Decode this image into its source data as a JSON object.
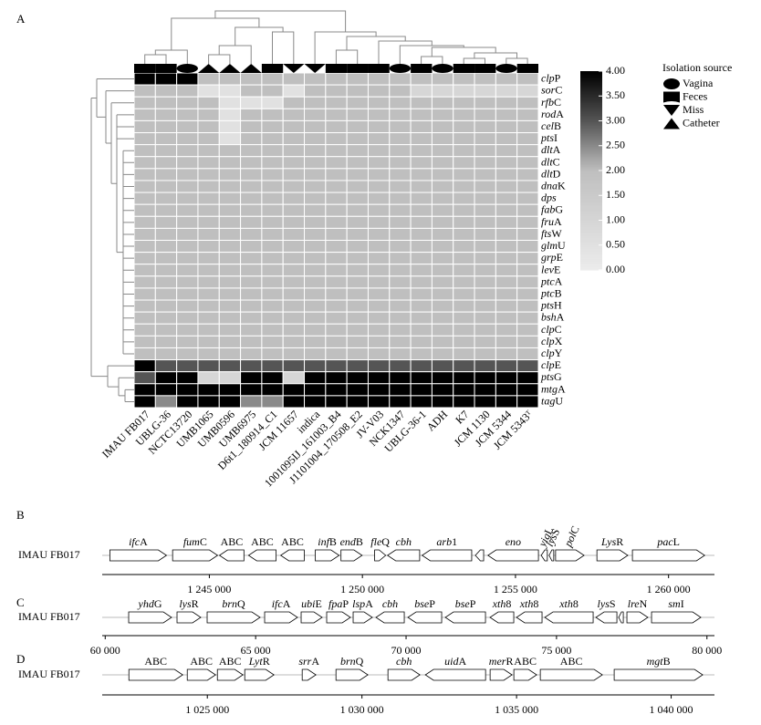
{
  "panel_labels": [
    "A",
    "B",
    "C",
    "D"
  ],
  "heatmap": {
    "columns": [
      "IMAU FB017",
      "UBLG-36",
      "NCTC13720",
      "UMB1065",
      "UMB0596",
      "UMB6975",
      "D6t1_180914_C1",
      "JCM 11657",
      "indica",
      "1001095IJ_161003_B4",
      "J1101004_170508_E2",
      "JV-V03",
      "NCK1347",
      "UBLG-36-1",
      "ADH",
      "K7",
      "JCM 1130",
      "JCM 5344",
      "JCM 5343ᵀ"
    ],
    "rows": [
      "clpP",
      "sorC",
      "rfbC",
      "rodA",
      "celB",
      "ptsI",
      "dltA",
      "dltC",
      "dltD",
      "dnaK",
      "dps",
      "fabG",
      "fruA",
      "ftsW",
      "glmU",
      "grpE",
      "levE",
      "ptcA",
      "ptcB",
      "ptsH",
      "bshA",
      "clpC",
      "clpX",
      "clpY",
      "clpE",
      "ptsG",
      "mtgA",
      "tagU"
    ],
    "values": [
      [
        4,
        4,
        4,
        2,
        2,
        2,
        2,
        2,
        2,
        2,
        2,
        2,
        2,
        2,
        2,
        2,
        2,
        2,
        2
      ],
      [
        2,
        2,
        2,
        0.5,
        0.5,
        2,
        2,
        0.5,
        2,
        2,
        2,
        2,
        2,
        1,
        1,
        1,
        1,
        1,
        1
      ],
      [
        2,
        2,
        2,
        2,
        0.5,
        0.5,
        0.5,
        2,
        2,
        2,
        2,
        2,
        2,
        2,
        2,
        2,
        2,
        2,
        2
      ],
      [
        2,
        2,
        2,
        2,
        0.5,
        2,
        2,
        2,
        2,
        2,
        2,
        2,
        2,
        2,
        2,
        2,
        2,
        2,
        2
      ],
      [
        2,
        2,
        2,
        2,
        0.5,
        2,
        2,
        2,
        2,
        2,
        2,
        2,
        2,
        2,
        2,
        2,
        2,
        2,
        2
      ],
      [
        2,
        2,
        2,
        2,
        0.5,
        2,
        2,
        2,
        2,
        2,
        2,
        2,
        2,
        2,
        2,
        2,
        2,
        2,
        2
      ],
      [
        2,
        2,
        2,
        2,
        2,
        2,
        2,
        2,
        2,
        2,
        2,
        2,
        2,
        2,
        2,
        2,
        2,
        2,
        2
      ],
      [
        2,
        2,
        2,
        2,
        2,
        2,
        2,
        2,
        2,
        2,
        2,
        2,
        2,
        2,
        2,
        2,
        2,
        2,
        2
      ],
      [
        2,
        2,
        2,
        2,
        2,
        2,
        2,
        2,
        2,
        2,
        2,
        2,
        2,
        2,
        2,
        2,
        2,
        2,
        2
      ],
      [
        2,
        2,
        2,
        2,
        2,
        2,
        2,
        2,
        2,
        2,
        2,
        2,
        2,
        2,
        2,
        2,
        2,
        2,
        2
      ],
      [
        2,
        2,
        2,
        2,
        2,
        2,
        2,
        2,
        2,
        2,
        2,
        2,
        2,
        2,
        2,
        2,
        2,
        2,
        2
      ],
      [
        2,
        2,
        2,
        2,
        2,
        2,
        2,
        2,
        2,
        2,
        2,
        2,
        2,
        2,
        2,
        2,
        2,
        2,
        2
      ],
      [
        2,
        2,
        2,
        2,
        2,
        2,
        2,
        2,
        2,
        2,
        2,
        2,
        2,
        2,
        2,
        2,
        2,
        2,
        2
      ],
      [
        2,
        2,
        2,
        2,
        2,
        2,
        2,
        2,
        2,
        2,
        2,
        2,
        2,
        2,
        2,
        2,
        2,
        2,
        2
      ],
      [
        2,
        2,
        2,
        2,
        2,
        2,
        2,
        2,
        2,
        2,
        2,
        2,
        2,
        2,
        2,
        2,
        2,
        2,
        2
      ],
      [
        2,
        2,
        2,
        2,
        2,
        2,
        2,
        2,
        2,
        2,
        2,
        2,
        2,
        2,
        2,
        2,
        2,
        2,
        2
      ],
      [
        2,
        2,
        2,
        2,
        2,
        2,
        2,
        2,
        2,
        2,
        2,
        2,
        2,
        2,
        2,
        2,
        2,
        2,
        2
      ],
      [
        2,
        2,
        2,
        2,
        2,
        2,
        2,
        2,
        2,
        2,
        2,
        2,
        2,
        2,
        2,
        2,
        2,
        2,
        2
      ],
      [
        2,
        2,
        2,
        2,
        2,
        2,
        2,
        2,
        2,
        2,
        2,
        2,
        2,
        2,
        2,
        2,
        2,
        2,
        2
      ],
      [
        2,
        2,
        2,
        2,
        2,
        2,
        2,
        2,
        2,
        2,
        2,
        2,
        2,
        2,
        2,
        2,
        2,
        2,
        2
      ],
      [
        2,
        2,
        2,
        2,
        2,
        2,
        2,
        2,
        2,
        2,
        2,
        2,
        2,
        2,
        2,
        2,
        2,
        2,
        2
      ],
      [
        2,
        2,
        2,
        2,
        2,
        2,
        2,
        2,
        2,
        2,
        2,
        2,
        2,
        2,
        2,
        2,
        2,
        2,
        2
      ],
      [
        2,
        2,
        2,
        2,
        2,
        2,
        2,
        2,
        2,
        2,
        2,
        2,
        2,
        2,
        2,
        2,
        2,
        2,
        2
      ],
      [
        2,
        2,
        2,
        2,
        2,
        2,
        2,
        2,
        2,
        2,
        2,
        2,
        2,
        2,
        2,
        2,
        2,
        2,
        2
      ],
      [
        4,
        3,
        3,
        3,
        3,
        3,
        3,
        3,
        3,
        3,
        3,
        3,
        3,
        3,
        3,
        3,
        3,
        3,
        3
      ],
      [
        3,
        4,
        4,
        1,
        1,
        4,
        4,
        1,
        4,
        4,
        4,
        4,
        4,
        4,
        4,
        4,
        4,
        4,
        4
      ],
      [
        4,
        4,
        4,
        4,
        4,
        4,
        4,
        4,
        4,
        4,
        4,
        4,
        4,
        4,
        4,
        4,
        4,
        4,
        4
      ],
      [
        4,
        2.5,
        4,
        4,
        4,
        2.5,
        2.5,
        4,
        4,
        4,
        4,
        4,
        4,
        4,
        4,
        4,
        4,
        4,
        4
      ]
    ],
    "sources": [
      "Feces",
      "Feces",
      "Vagina",
      "Catheter",
      "Catheter",
      "Catheter",
      "Feces",
      "Miss",
      "Miss",
      "Feces",
      "Feces",
      "Feces",
      "Vagina",
      "Feces",
      "Vagina",
      "Feces",
      "Feces",
      "Vagina",
      "Feces"
    ],
    "source_legend": {
      "title": "Isolation source",
      "items": [
        "Vagina",
        "Feces",
        "Miss",
        "Catheter"
      ]
    },
    "colorbar": {
      "lim": [
        0,
        4
      ],
      "ticks": [
        {
          "value": 0,
          "label": "0.00"
        },
        {
          "value": 0.5,
          "label": "0.50"
        },
        {
          "value": 1,
          "label": "1.00"
        },
        {
          "value": 1.5,
          "label": "1.50"
        },
        {
          "value": 2,
          "label": "2.00"
        },
        {
          "value": 2.5,
          "label": "2.50"
        },
        {
          "value": 3,
          "label": "3.00"
        },
        {
          "value": 3.5,
          "label": "3.50"
        },
        {
          "value": 4,
          "label": "4.00"
        }
      ],
      "stops": [
        [
          0,
          "#ececec"
        ],
        [
          2,
          "#bfbfbf"
        ],
        [
          3,
          "#555555"
        ],
        [
          4,
          "#000000"
        ]
      ]
    }
  },
  "tracks": [
    {
      "label": "IMAU FB017",
      "xlim": [
        1241500,
        1261500
      ],
      "xticks": [
        {
          "value": 1245000,
          "label": "1 245 000"
        },
        {
          "value": 1250000,
          "label": "1 250 000"
        },
        {
          "value": 1255000,
          "label": "1 255 000"
        },
        {
          "value": 1260000,
          "label": "1 260 000"
        }
      ],
      "genes": [
        {
          "label": "ifcA",
          "start": 1241750,
          "end": 1243600,
          "strand": 1
        },
        {
          "label": "fumC",
          "start": 1243800,
          "end": 1245270,
          "strand": 1
        },
        {
          "label": "ABC",
          "start": 1245330,
          "end": 1246130,
          "strand": -1
        },
        {
          "label": "ABC",
          "start": 1246280,
          "end": 1247180,
          "strand": -1
        },
        {
          "label": "ABC",
          "start": 1247330,
          "end": 1248100,
          "strand": -1
        },
        {
          "label": "infB",
          "start": 1248460,
          "end": 1249240,
          "strand": 1
        },
        {
          "label": "endB",
          "start": 1249300,
          "end": 1249990,
          "strand": 1
        },
        {
          "label": "fleQ",
          "start": 1250400,
          "end": 1250760,
          "strand": 1
        },
        {
          "label": "cbh",
          "start": 1250820,
          "end": 1251870,
          "strand": -1,
          "color": "#000000"
        },
        {
          "label": "arb1",
          "start": 1251950,
          "end": 1253570,
          "strand": -1
        },
        {
          "start": 1253690,
          "end": 1253960,
          "strand": -1
        },
        {
          "label": "eno",
          "start": 1254100,
          "end": 1255750,
          "strand": -1
        },
        {
          "label": "yigL",
          "start": 1255840,
          "end": 1256040,
          "strand": -1
        },
        {
          "label": "lysS",
          "start": 1256100,
          "end": 1256250,
          "strand": -1
        },
        {
          "label": "polC",
          "start": 1256310,
          "end": 1257240,
          "strand": 1
        },
        {
          "label": "LysR",
          "start": 1257660,
          "end": 1258670,
          "strand": 1
        },
        {
          "label": "pacL",
          "start": 1258820,
          "end": 1261180,
          "strand": 1
        }
      ]
    },
    {
      "label": "IMAU FB017",
      "xlim": [
        59900,
        80250
      ],
      "xticks": [
        {
          "value": 60000,
          "label": "60 000"
        },
        {
          "value": 65000,
          "label": "65 000"
        },
        {
          "value": 70000,
          "label": "70 000"
        },
        {
          "value": 75000,
          "label": "75 000"
        },
        {
          "value": 80000,
          "label": "80 000"
        }
      ],
      "genes": [
        {
          "label": "yhdG",
          "start": 60780,
          "end": 62205,
          "strand": 1
        },
        {
          "label": "lysR",
          "start": 62387,
          "end": 63176,
          "strand": 1
        },
        {
          "label": "brnQ",
          "start": 63388,
          "end": 65147,
          "strand": 1
        },
        {
          "label": "ifcA",
          "start": 65299,
          "end": 66391,
          "strand": 1
        },
        {
          "label": "ubiE",
          "start": 66512,
          "end": 67210,
          "strand": 1
        },
        {
          "label": "fpaP",
          "start": 67361,
          "end": 68150,
          "strand": 1
        },
        {
          "label": "lspA",
          "start": 68241,
          "end": 68878,
          "strand": 1
        },
        {
          "label": "cbh",
          "start": 68999,
          "end": 69940,
          "strand": -1,
          "color": "#000000"
        },
        {
          "label": "bseP",
          "start": 70061,
          "end": 71183,
          "strand": -1
        },
        {
          "label": "bseP",
          "start": 71304,
          "end": 72639,
          "strand": -1
        },
        {
          "label": "xth8",
          "start": 72790,
          "end": 73579,
          "strand": -1
        },
        {
          "label": "xth8",
          "start": 73670,
          "end": 74519,
          "strand": -1
        },
        {
          "label": "xth8",
          "start": 74610,
          "end": 76218,
          "strand": -1
        },
        {
          "label": "lysS",
          "start": 76309,
          "end": 77007,
          "strand": -1
        },
        {
          "start": 77068,
          "end": 77220,
          "strand": -1
        },
        {
          "label": "lreN",
          "start": 77340,
          "end": 78037,
          "strand": 1
        },
        {
          "label": "smI",
          "start": 78159,
          "end": 79797,
          "strand": 1
        }
      ]
    },
    {
      "label": "IMAU FB017",
      "xlim": [
        1021600,
        1041400
      ],
      "xticks": [
        {
          "value": 1025000,
          "label": "1 025 000"
        },
        {
          "value": 1030000,
          "label": "1 030 000"
        },
        {
          "value": 1035000,
          "label": "1 035 000"
        },
        {
          "value": 1040000,
          "label": "1 040 000"
        }
      ],
      "genes": [
        {
          "label": "ABC",
          "start": 1022463,
          "end": 1024204,
          "strand": 1
        },
        {
          "label": "ABC",
          "start": 1024351,
          "end": 1025266,
          "strand": 1
        },
        {
          "label": "ABC",
          "start": 1025325,
          "end": 1026151,
          "strand": 1
        },
        {
          "label": "LytR",
          "start": 1026210,
          "end": 1027154,
          "strand": 1
        },
        {
          "label": "srrA",
          "start": 1028068,
          "end": 1028511,
          "strand": 1
        },
        {
          "label": "brnQ",
          "start": 1029160,
          "end": 1030192,
          "strand": 1
        },
        {
          "label": "cbh",
          "start": 1030841,
          "end": 1031874,
          "strand": 1,
          "color": "#000000"
        },
        {
          "label": "uidA",
          "start": 1032051,
          "end": 1033998,
          "strand": -1
        },
        {
          "label": "merR",
          "start": 1034145,
          "end": 1034853,
          "strand": 1
        },
        {
          "label": "ABC",
          "start": 1034912,
          "end": 1035650,
          "strand": 1
        },
        {
          "label": "ABC",
          "start": 1035768,
          "end": 1037774,
          "strand": 1
        },
        {
          "label": "mgtB",
          "start": 1038157,
          "end": 1041019,
          "strand": 1
        }
      ]
    }
  ]
}
